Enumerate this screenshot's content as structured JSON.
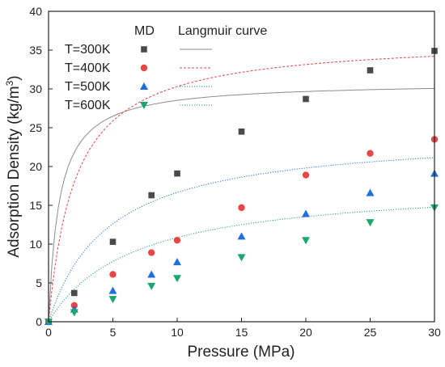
{
  "chart_data": {
    "type": "scatter",
    "title": "",
    "xlabel": "Pressure (MPa)",
    "ylabel_main": "Adsorption Density (kg/m",
    "ylabel_sup": "3",
    "ylabel_close": ")",
    "xlim": [
      0,
      30
    ],
    "ylim": [
      0,
      40
    ],
    "xticks": [
      0,
      5,
      10,
      15,
      20,
      25,
      30
    ],
    "yticks": [
      0,
      5,
      10,
      15,
      20,
      25,
      30,
      35,
      40
    ],
    "grid": false,
    "legend_placement": "top-left",
    "legend_header_md": "MD",
    "legend_header_curve": "Langmuir curve",
    "x": [
      0,
      2,
      5,
      8,
      10,
      15,
      20,
      25,
      30
    ],
    "series": [
      {
        "name": "T=300K",
        "marker": "square",
        "color": "#4a4a4a",
        "line_color": "#8c8c8c",
        "line_style": "solid",
        "values": [
          0,
          3.7,
          10.3,
          16.3,
          19.1,
          24.5,
          28.7,
          32.4,
          34.9
        ],
        "langmuir": {
          "a": 1.03,
          "b": 1.2
        }
      },
      {
        "name": "T=400K",
        "marker": "circle",
        "color": "#e84545",
        "line_color": "#e84545",
        "line_style": "dashed",
        "values": [
          0,
          2.1,
          6.1,
          8.9,
          10.5,
          14.7,
          18.9,
          21.7,
          23.5
        ],
        "langmuir": {
          "a": 1.219,
          "b": 0.4837
        }
      },
      {
        "name": "T=500K",
        "marker": "triangle-up",
        "color": "#1f6fe0",
        "line_color": "#1f6fe0",
        "line_style": "dotted",
        "values": [
          0,
          1.6,
          4.0,
          6.1,
          7.7,
          11.0,
          13.9,
          16.6,
          19.1
        ],
        "langmuir": {
          "a": 0.815,
          "b": 0.2135
        }
      },
      {
        "name": "T=600K",
        "marker": "triangle-down",
        "color": "#1aa76b",
        "line_color": "#1aa76b",
        "line_style": "dotted",
        "values": [
          0,
          1.2,
          2.9,
          4.6,
          5.6,
          8.3,
          10.5,
          12.8,
          14.7
        ],
        "langmuir": {
          "a": 0.6,
          "b": 0.1517
        }
      }
    ]
  }
}
